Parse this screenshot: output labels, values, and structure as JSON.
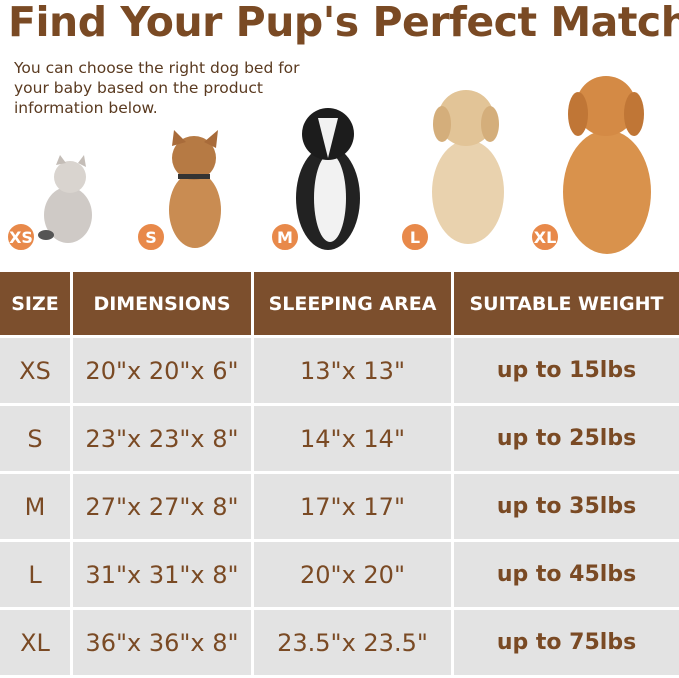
{
  "title": "Find Your Pup's Perfect Match",
  "subtitle": "You can choose the right dog bed for your baby based on the product information below.",
  "pets": [
    {
      "size": "XS",
      "animal": "cat"
    },
    {
      "size": "S",
      "animal": "french bulldog"
    },
    {
      "size": "M",
      "animal": "border collie"
    },
    {
      "size": "L",
      "animal": "golden retriever"
    },
    {
      "size": "XL",
      "animal": "golden retriever"
    }
  ],
  "colors": {
    "brown": "#7a4a24",
    "header_bg": "#7c4f2d",
    "row_bg": "#e3e3e3",
    "badge": "#e8894a"
  },
  "table": {
    "headers": [
      "SIZE",
      "DIMENSIONS",
      "SLEEPING AREA",
      "SUITABLE WEIGHT"
    ],
    "rows": [
      [
        "XS",
        "20\"x 20\"x 6\"",
        "13\"x 13\"",
        "up to 15lbs"
      ],
      [
        "S",
        "23\"x 23\"x 8\"",
        "14\"x 14\"",
        "up to 25lbs"
      ],
      [
        "M",
        "27\"x 27\"x 8\"",
        "17\"x 17\"",
        "up to 35lbs"
      ],
      [
        "L",
        "31\"x 31\"x 8\"",
        "20\"x 20\"",
        "up to 45lbs"
      ],
      [
        "XL",
        "36\"x 36\"x 8\"",
        "23.5\"x 23.5\"",
        "up to 75lbs"
      ]
    ]
  }
}
